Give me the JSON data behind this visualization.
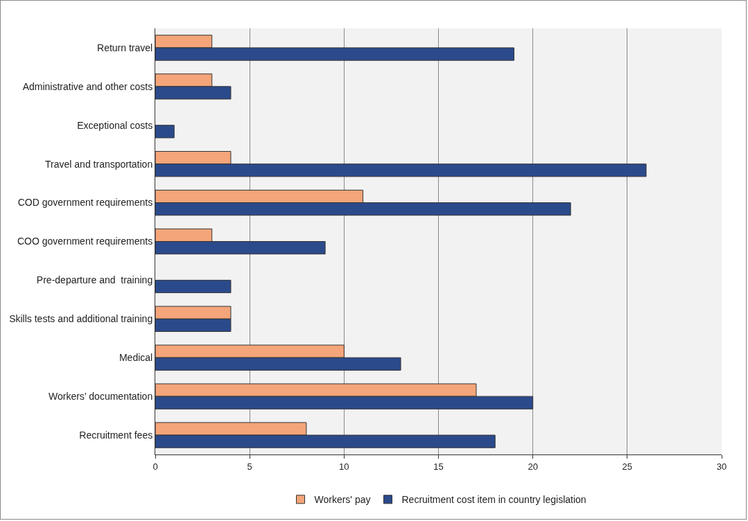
{
  "chart_data": {
    "type": "bar",
    "orientation": "horizontal",
    "categories": [
      "Return travel",
      "Administrative and other costs",
      "Exceptional costs",
      "Travel and transportation",
      "COD government requirements",
      "COO government requirements",
      "Pre-departure and  training",
      "Skills tests and additional training",
      "Medical",
      "Workers’ documentation",
      "Recruitment fees"
    ],
    "series": [
      {
        "name": "Workers' pay",
        "color": "#f4a57a",
        "values": [
          3,
          3,
          null,
          4,
          11,
          3,
          null,
          4,
          10,
          17,
          8
        ]
      },
      {
        "name": "Recruitment cost item in country legislation",
        "color": "#2b4a8b",
        "values": [
          19,
          4,
          1,
          26,
          22,
          9,
          4,
          4,
          13,
          20,
          18
        ]
      }
    ],
    "xlim": [
      0,
      30
    ],
    "xticks": [
      0,
      5,
      10,
      15,
      20,
      25,
      30
    ],
    "grid": "x",
    "legend": "bottom"
  }
}
